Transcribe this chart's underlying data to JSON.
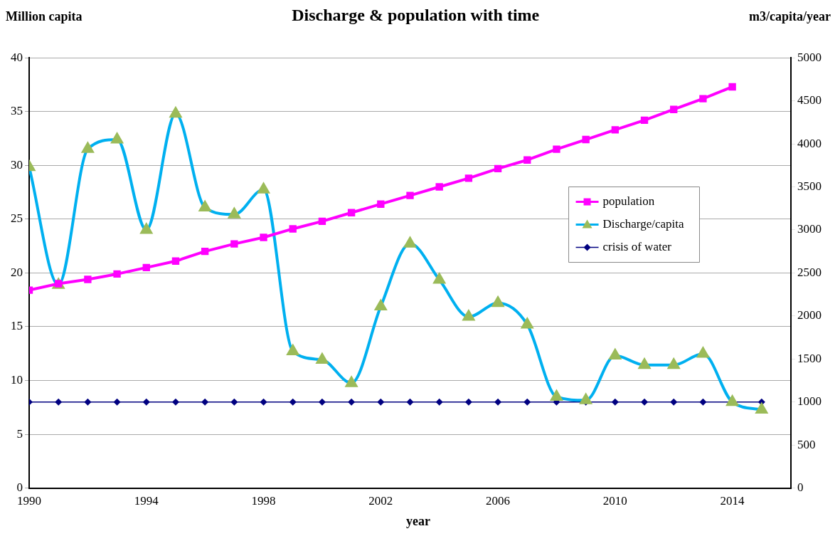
{
  "chart_data": {
    "type": "line",
    "title": "Discharge & population with time",
    "xlabel": "year",
    "ylabel": "Million capita",
    "y2label": "m3/capita/year",
    "x": [
      1990,
      1991,
      1992,
      1993,
      1994,
      1995,
      1996,
      1997,
      1998,
      1999,
      2000,
      2001,
      2002,
      2003,
      2004,
      2005,
      2006,
      2007,
      2008,
      2009,
      2010,
      2011,
      2012,
      2013,
      2014,
      2015
    ],
    "xlim": [
      1990,
      2016
    ],
    "xticks": [
      1990,
      1994,
      1998,
      2002,
      2006,
      2010,
      2014
    ],
    "ylim": [
      0,
      40
    ],
    "yticks": [
      0,
      5,
      10,
      15,
      20,
      25,
      30,
      35,
      40
    ],
    "y2lim": [
      0,
      5000
    ],
    "y2ticks": [
      0,
      500,
      1000,
      1500,
      2000,
      2500,
      3000,
      3500,
      4000,
      4500,
      5000
    ],
    "grid": "y",
    "legend": "right",
    "line_style": "solid",
    "series": [
      {
        "name": "population",
        "color": "#ff00ff",
        "marker": "square",
        "values": [
          18.4,
          19.0,
          19.4,
          19.9,
          20.5,
          21.1,
          22.0,
          22.7,
          23.3,
          24.1,
          24.8,
          25.6,
          26.4,
          27.2,
          28.0,
          28.8,
          29.7,
          30.5,
          31.5,
          32.4,
          33.3,
          34.2,
          35.2,
          36.2,
          37.3,
          null
        ]
      },
      {
        "name": "Discharge/capita",
        "color": "#00b0f0",
        "colors": [
          "#9bbb59",
          "#9bbb59",
          "#9bbb59",
          "#9bbb59",
          "#9bbb59",
          "#9bbb59",
          "#9bbb59",
          "#9bbb59",
          "#9bbb59",
          "#9bbb59",
          "#9bbb59",
          "#9bbb59",
          "#9bbb59",
          "#9bbb59",
          "#9bbb59",
          "#9bbb59",
          "#9bbb59",
          "#9bbb59",
          "#9bbb59",
          "#9bbb59",
          "#9bbb59",
          "#9bbb59",
          "#9bbb59",
          "#9bbb59",
          "#9bbb59",
          "#9bbb59"
        ],
        "marker": "triangle",
        "axis": "y2",
        "values": [
          3730,
          2360,
          3940,
          4050,
          3000,
          4350,
          3260,
          3180,
          3470,
          1590,
          1490,
          1220,
          2110,
          2840,
          2420,
          1990,
          2150,
          1900,
          1060,
          1020,
          1540,
          1430,
          1430,
          1560,
          1000,
          910
        ]
      },
      {
        "name": "crisis of water",
        "color": "#000080",
        "marker": "diamond",
        "axis": "y2",
        "values": [
          1000,
          1000,
          1000,
          1000,
          1000,
          1000,
          1000,
          1000,
          1000,
          1000,
          1000,
          1000,
          1000,
          1000,
          1000,
          1000,
          1000,
          1000,
          1000,
          1000,
          1000,
          1000,
          1000,
          1000,
          1000,
          1000
        ]
      }
    ]
  }
}
